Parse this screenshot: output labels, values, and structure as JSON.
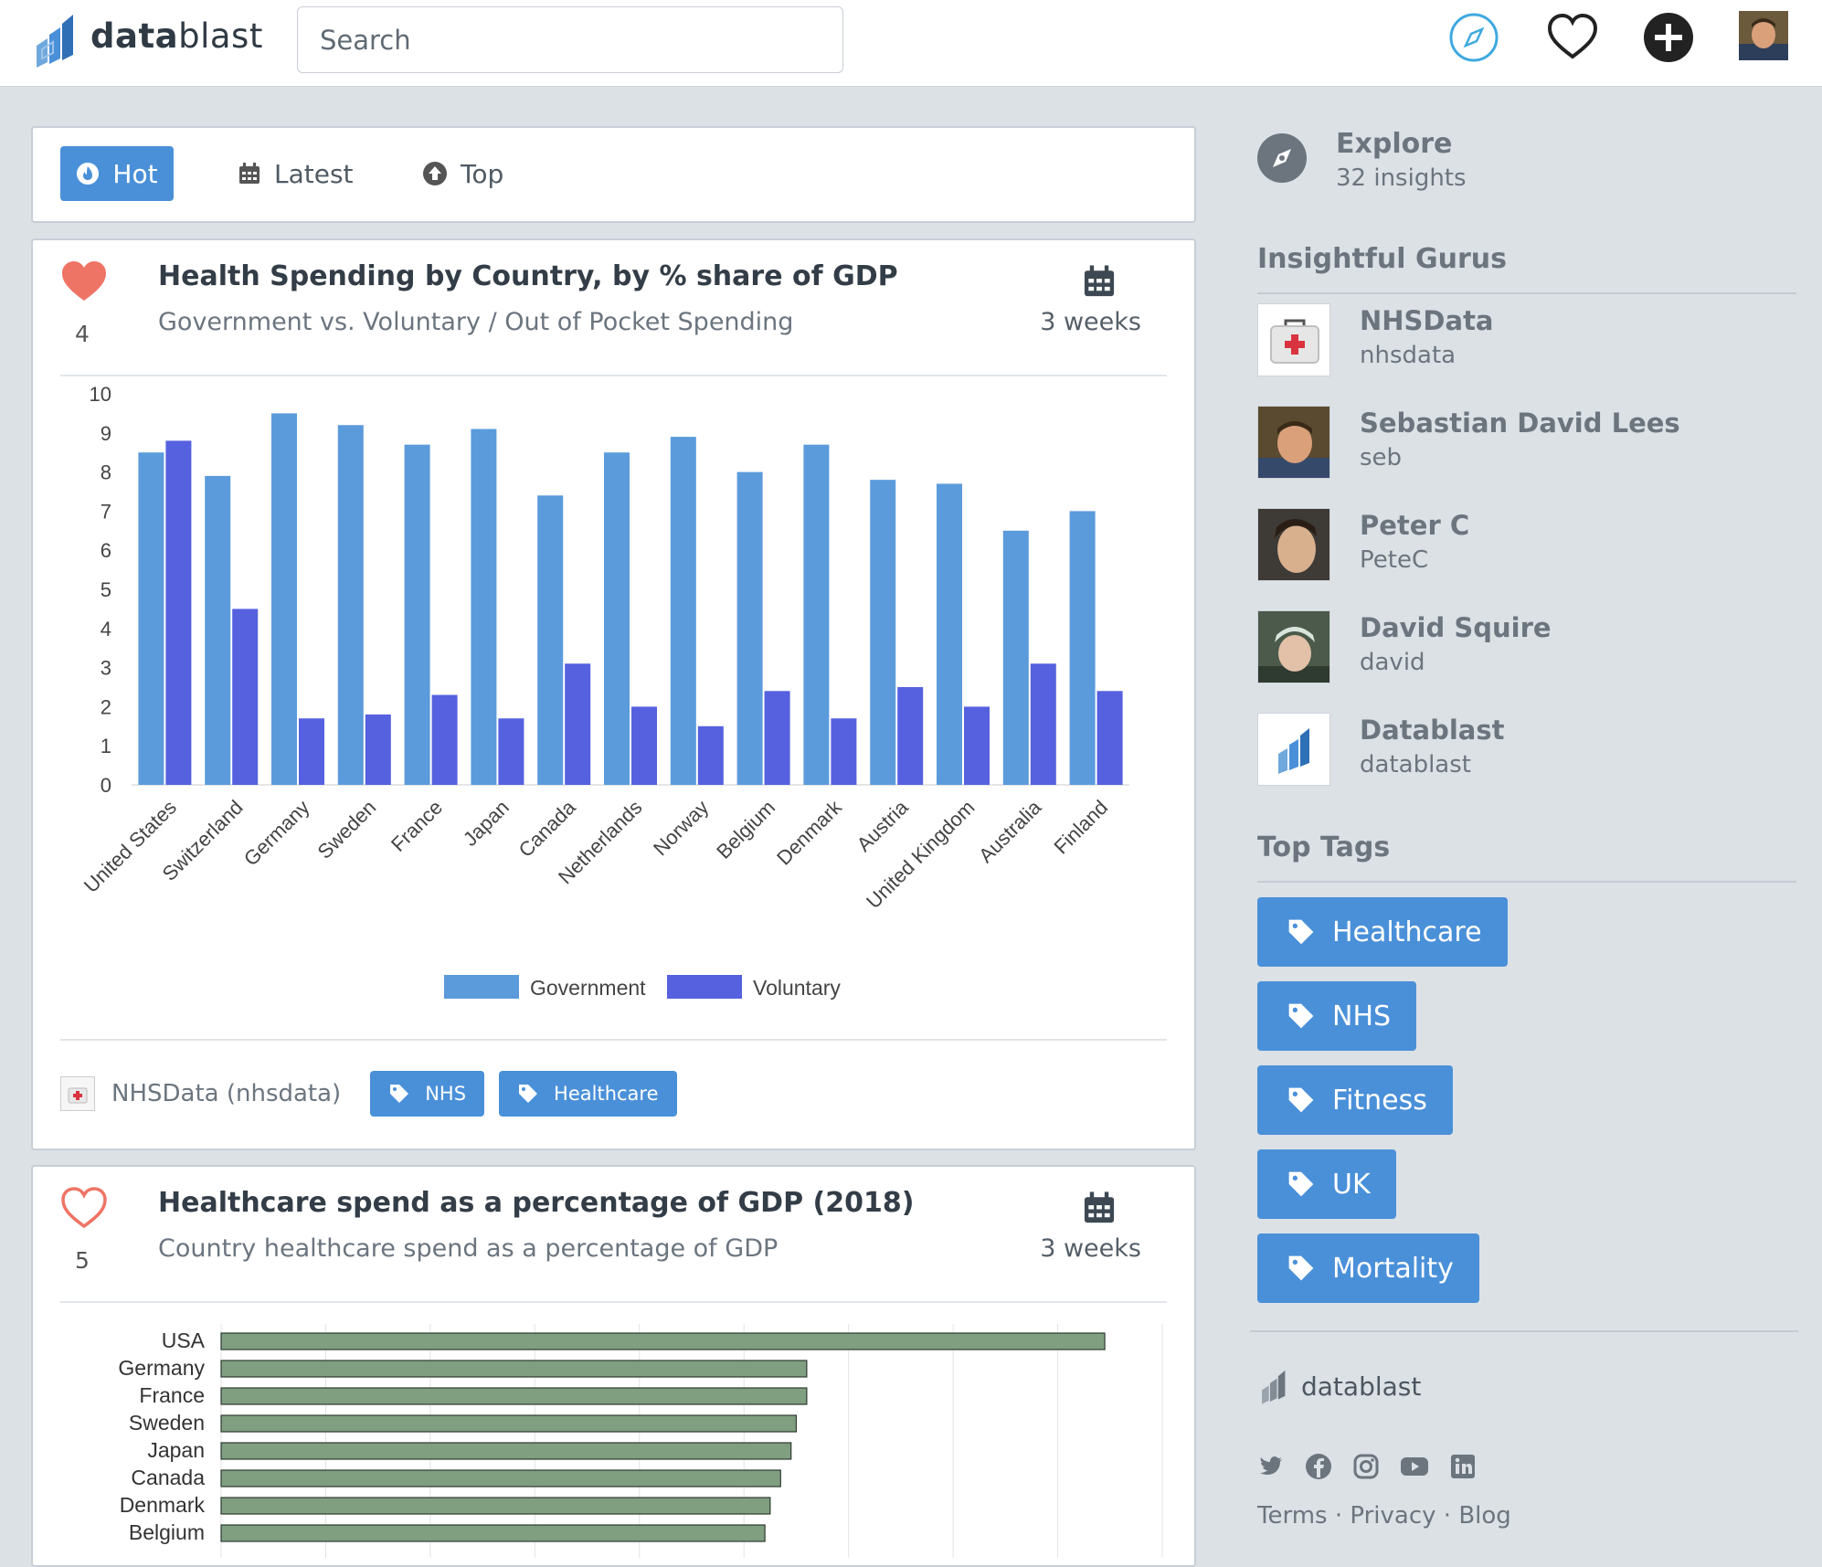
{
  "header": {
    "brand_bold": "data",
    "brand_light": "blast",
    "search_placeholder": "Search",
    "icons": [
      "compass-icon",
      "heart-outline-icon",
      "plus-circle-icon",
      "user-avatar"
    ]
  },
  "tabs": [
    {
      "label": "Hot",
      "icon": "flame-icon",
      "active": true
    },
    {
      "label": "Latest",
      "icon": "calendar-icon",
      "active": false
    },
    {
      "label": "Top",
      "icon": "arrow-up-circle-icon",
      "active": false
    }
  ],
  "cards": [
    {
      "title": "Health Spending by Country, by % share of GDP",
      "subtitle": "Government vs. Voluntary / Out of Pocket Spending",
      "likes": "4",
      "liked": true,
      "age": "3 weeks",
      "author": "NHSData (nhsdata)",
      "tags": [
        "NHS",
        "Healthcare"
      ]
    },
    {
      "title": "Healthcare spend as a percentage of GDP (2018)",
      "subtitle": "Country healthcare spend as a percentage of GDP",
      "likes": "5",
      "liked": false,
      "age": "3 weeks"
    }
  ],
  "chart_data": [
    {
      "type": "bar",
      "categories": [
        "United States",
        "Switzerland",
        "Germany",
        "Sweden",
        "France",
        "Japan",
        "Canada",
        "Netherlands",
        "Norway",
        "Belgium",
        "Denmark",
        "Austria",
        "United Kingdom",
        "Australia",
        "Finland"
      ],
      "series": [
        {
          "name": "Government",
          "color": "#5b9bdc",
          "values": [
            8.5,
            7.9,
            9.5,
            9.2,
            8.7,
            9.1,
            7.4,
            8.5,
            8.9,
            8.0,
            8.7,
            7.8,
            7.7,
            6.5,
            7.0
          ]
        },
        {
          "name": "Voluntary",
          "color": "#5561df",
          "values": [
            8.8,
            4.5,
            1.7,
            1.8,
            2.3,
            1.7,
            3.1,
            2.0,
            1.5,
            2.4,
            1.7,
            2.5,
            2.0,
            3.1,
            2.4
          ]
        }
      ],
      "ylim": [
        0,
        10
      ],
      "yticks": [
        0,
        1,
        2,
        3,
        4,
        5,
        6,
        7,
        8,
        9,
        10
      ],
      "legend": "bottom",
      "grid": false
    },
    {
      "type": "bar",
      "orientation": "horizontal",
      "categories": [
        "USA",
        "Germany",
        "France",
        "Sweden",
        "Japan",
        "Canada",
        "Denmark",
        "Belgium"
      ],
      "values": [
        16.9,
        11.2,
        11.2,
        11.0,
        10.9,
        10.7,
        10.5,
        10.4
      ],
      "xlim": [
        0,
        18
      ],
      "color": "#7f9f80",
      "grid": true
    }
  ],
  "sidebar": {
    "explore_title": "Explore",
    "explore_count": "32 insights",
    "gurus_heading": "Insightful Gurus",
    "gurus": [
      {
        "name": "NHSData",
        "user": "nhsdata",
        "avatar": "first-aid-kit"
      },
      {
        "name": "Sebastian David Lees",
        "user": "seb",
        "avatar": "photo"
      },
      {
        "name": "Peter C",
        "user": "PeteC",
        "avatar": "photo"
      },
      {
        "name": "David Squire",
        "user": "david",
        "avatar": "photo"
      },
      {
        "name": "Datablast",
        "user": "datablast",
        "avatar": "datablast-logo"
      }
    ],
    "tags_heading": "Top Tags",
    "tags": [
      "Healthcare",
      "NHS",
      "Fitness",
      "UK",
      "Mortality"
    ],
    "footer_brand": "datablast",
    "social": [
      "twitter-icon",
      "facebook-icon",
      "instagram-icon",
      "youtube-icon",
      "linkedin-icon"
    ],
    "legal": [
      "Terms",
      "Privacy",
      "Blog"
    ]
  }
}
